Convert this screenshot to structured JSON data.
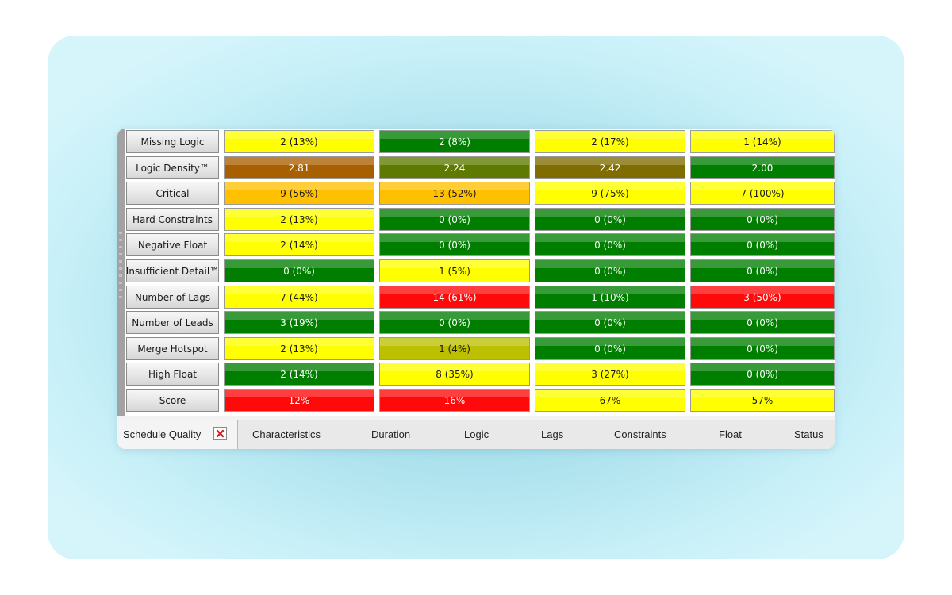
{
  "rows": [
    {
      "label": "Missing Logic",
      "cells": [
        {
          "value": "2 (13%)",
          "status": "yellow"
        },
        {
          "value": "2 (8%)",
          "status": "green"
        },
        {
          "value": "2 (17%)",
          "status": "yellow"
        },
        {
          "value": "1 (14%)",
          "status": "yellow"
        }
      ]
    },
    {
      "label": "Logic Density™",
      "cells": [
        {
          "value": "2.81",
          "status": "brown"
        },
        {
          "value": "2.24",
          "status": "olive"
        },
        {
          "value": "2.42",
          "status": "olive-brown"
        },
        {
          "value": "2.00",
          "status": "green"
        }
      ]
    },
    {
      "label": "Critical",
      "cells": [
        {
          "value": "9 (56%)",
          "status": "amber"
        },
        {
          "value": "13 (52%)",
          "status": "amber"
        },
        {
          "value": "9 (75%)",
          "status": "yellow"
        },
        {
          "value": "7 (100%)",
          "status": "yellow"
        }
      ]
    },
    {
      "label": "Hard Constraints",
      "cells": [
        {
          "value": "2 (13%)",
          "status": "yellow"
        },
        {
          "value": "0 (0%)",
          "status": "green"
        },
        {
          "value": "0 (0%)",
          "status": "green"
        },
        {
          "value": "0 (0%)",
          "status": "green"
        }
      ]
    },
    {
      "label": "Negative Float",
      "cells": [
        {
          "value": "2 (14%)",
          "status": "yellow"
        },
        {
          "value": "0 (0%)",
          "status": "green"
        },
        {
          "value": "0 (0%)",
          "status": "green"
        },
        {
          "value": "0 (0%)",
          "status": "green"
        }
      ]
    },
    {
      "label": "Insufficient Detail™",
      "cells": [
        {
          "value": "0 (0%)",
          "status": "green"
        },
        {
          "value": "1 (5%)",
          "status": "yellow"
        },
        {
          "value": "0 (0%)",
          "status": "green"
        },
        {
          "value": "0 (0%)",
          "status": "green"
        }
      ]
    },
    {
      "label": "Number of Lags",
      "cells": [
        {
          "value": "7 (44%)",
          "status": "yellow"
        },
        {
          "value": "14 (61%)",
          "status": "red"
        },
        {
          "value": "1 (10%)",
          "status": "green"
        },
        {
          "value": "3 (50%)",
          "status": "red"
        }
      ]
    },
    {
      "label": "Number of Leads",
      "cells": [
        {
          "value": "3 (19%)",
          "status": "green"
        },
        {
          "value": "0 (0%)",
          "status": "green"
        },
        {
          "value": "0 (0%)",
          "status": "green"
        },
        {
          "value": "0 (0%)",
          "status": "green"
        }
      ]
    },
    {
      "label": "Merge Hotspot",
      "cells": [
        {
          "value": "2 (13%)",
          "status": "yellow"
        },
        {
          "value": "1 (4%)",
          "status": "yellow-olive"
        },
        {
          "value": "0 (0%)",
          "status": "green"
        },
        {
          "value": "0 (0%)",
          "status": "green"
        }
      ]
    },
    {
      "label": "High Float",
      "cells": [
        {
          "value": "2 (14%)",
          "status": "green"
        },
        {
          "value": "8 (35%)",
          "status": "yellow"
        },
        {
          "value": "3 (27%)",
          "status": "yellow"
        },
        {
          "value": "0 (0%)",
          "status": "green"
        }
      ]
    },
    {
      "label": "Score",
      "cells": [
        {
          "value": "12%",
          "status": "red"
        },
        {
          "value": "16%",
          "status": "red"
        },
        {
          "value": "67%",
          "status": "yellow"
        },
        {
          "value": "57%",
          "status": "yellow"
        }
      ]
    }
  ],
  "colors": {
    "yellow": "#ffff00",
    "green": "#007e00",
    "red": "#ff0a0a",
    "amber": "#ffc000",
    "brown": "#a85f00",
    "olive": "#5e7a00",
    "olive-brown": "#7f6d00",
    "yellow-olive": "#bcc000"
  },
  "text_colors": {
    "yellow": "#1a1a1a",
    "amber": "#1a1a1a",
    "yellow-olive": "#1a1a1a",
    "green": "#ffffff",
    "red": "#ffffff",
    "brown": "#ffffff",
    "olive": "#ffffff",
    "olive-brown": "#ffffff"
  },
  "tabbar": {
    "active_tab": "Schedule Quality",
    "close_icon": "close-icon",
    "tabs": [
      "Characteristics",
      "Duration",
      "Logic",
      "Lags",
      "Constraints",
      "Float",
      "Status"
    ]
  }
}
